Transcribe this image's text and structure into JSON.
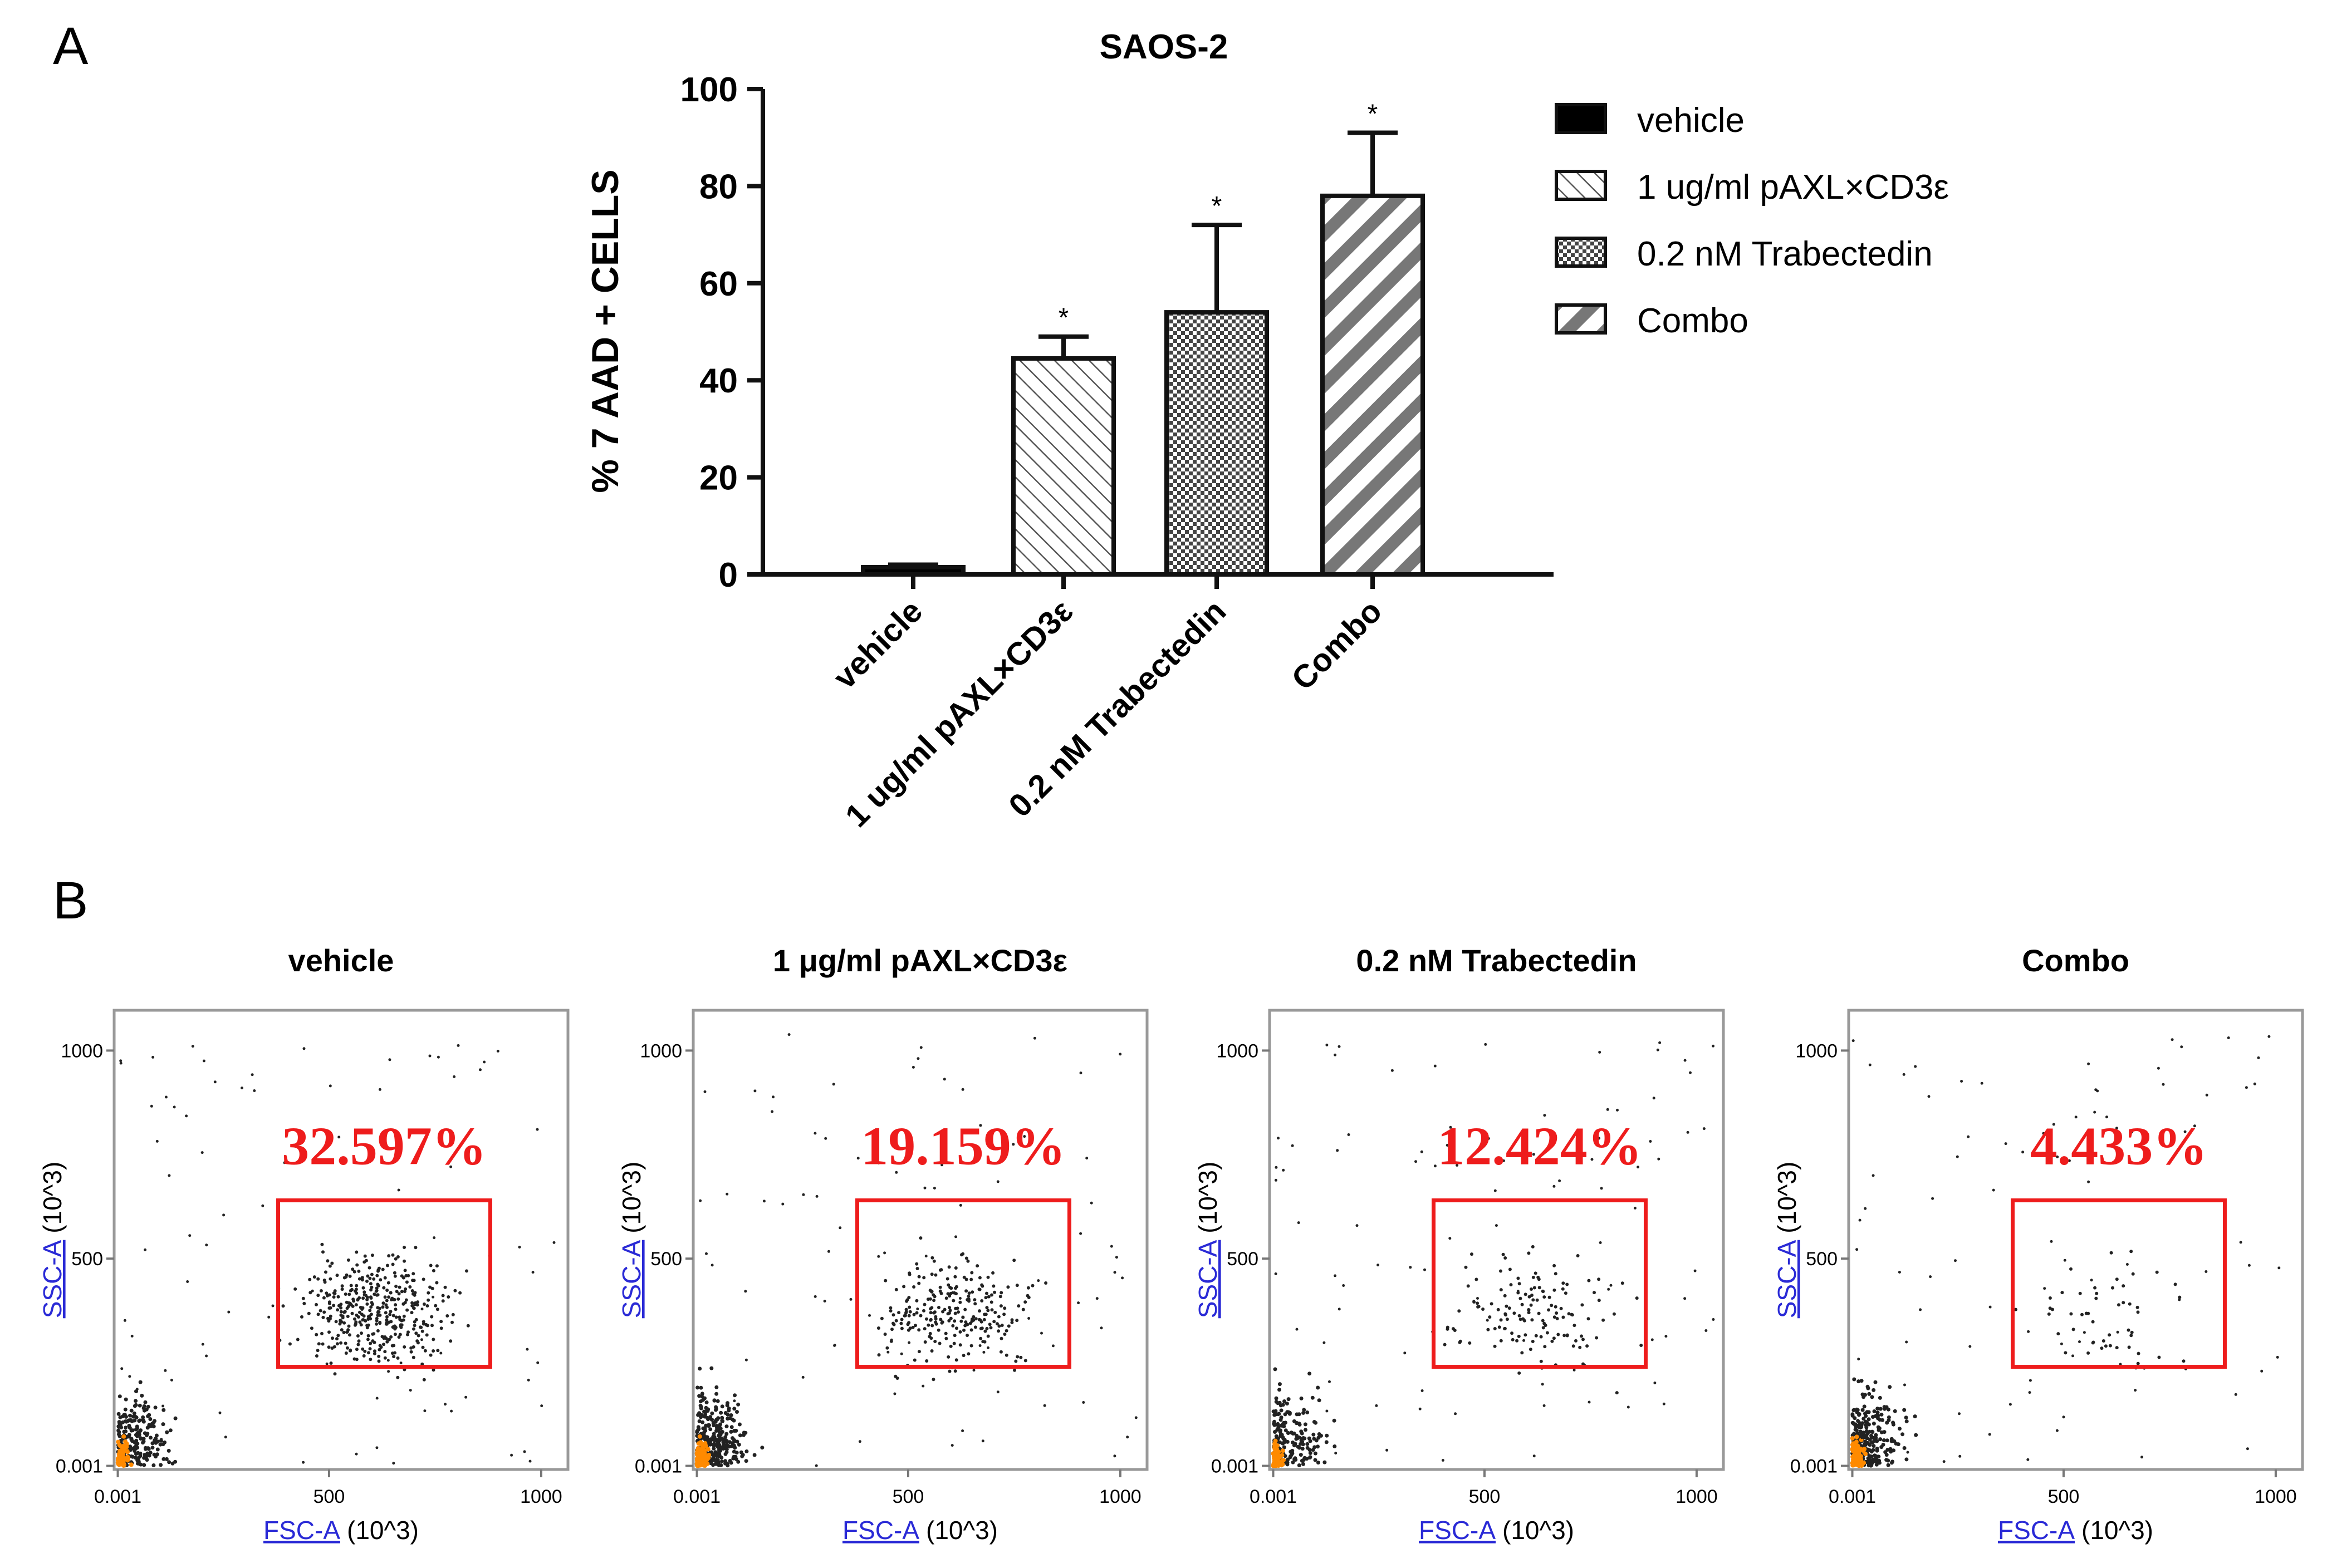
{
  "colors": {
    "bar_stroke": "#111111",
    "hatch": "#333333",
    "gate": "#ee1c1c",
    "axis_link": "#2a2ad6",
    "dot": "#222222",
    "dense": "#ff8a00"
  },
  "chart_data": [
    {
      "panel": "A",
      "type": "bar",
      "title": "SAOS-2",
      "ylabel": "% 7 AAD + CELLS",
      "xlabel": "",
      "ylim": [
        0,
        100
      ],
      "yticks": [
        0,
        20,
        40,
        60,
        80,
        100
      ],
      "categories": [
        "vehicle",
        "1 ug/ml pAXL×CD3ε",
        "0.2 nM Trabectedin",
        "Combo"
      ],
      "values": [
        1.5,
        44.5,
        54,
        78
      ],
      "errors": [
        0.5,
        4.5,
        18,
        13
      ],
      "significance": [
        "",
        "*",
        "*",
        "*"
      ],
      "legend": {
        "position": "right",
        "entries": [
          "vehicle",
          "1 ug/ml pAXL×CD3ε",
          "0.2 nM Trabectedin",
          "Combo"
        ]
      }
    },
    {
      "panel": "B",
      "type": "scatter",
      "x_axis": {
        "link_text": "FSC-A",
        "unit_text": "(10^3)",
        "ticks": [
          "0.001",
          "500",
          "1000"
        ]
      },
      "y_axis": {
        "link_text": "SSC-A",
        "unit_text": "(10^3)",
        "ticks": [
          "0.001",
          "500",
          "1000"
        ]
      },
      "xlim": [
        0,
        1050
      ],
      "ylim": [
        0,
        1050
      ],
      "gate": {
        "x": [
          380,
          880
        ],
        "y": [
          240,
          640
        ]
      },
      "plots": [
        {
          "title": "vehicle",
          "gate_percent": "32.597%"
        },
        {
          "title": "1 μg/ml pAXL×CD3ε",
          "gate_percent": "19.159%"
        },
        {
          "title": "0.2 nM Trabectedin",
          "gate_percent": "12.424%"
        },
        {
          "title": "Combo",
          "gate_percent": "4.433%"
        }
      ]
    }
  ]
}
